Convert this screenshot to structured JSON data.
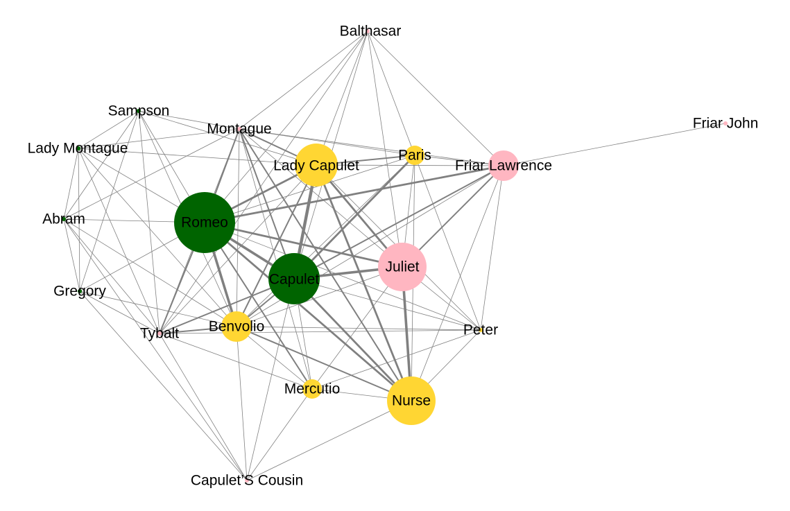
{
  "colors": {
    "background": "#ffffff",
    "edge": "#808080",
    "label": "#000000",
    "green_group": "#006400",
    "yellow_group": "#ffd633",
    "pink_group": "#ffb6c1"
  },
  "nodes": [
    {
      "id": "balthasar",
      "label": "Balthasar",
      "group": "pink",
      "size": 1
    },
    {
      "id": "sampson",
      "label": "Sampson",
      "group": "green",
      "size": 1
    },
    {
      "id": "montague",
      "label": "Montague",
      "group": "pink",
      "size": 1
    },
    {
      "id": "lady_montague",
      "label": "Lady Montague",
      "group": "green",
      "size": 1
    },
    {
      "id": "lady_capulet",
      "label": "Lady Capulet",
      "group": "yellow",
      "size": 5
    },
    {
      "id": "paris",
      "label": "Paris",
      "group": "yellow",
      "size": 2
    },
    {
      "id": "friar_lawrence",
      "label": "Friar Lawrence",
      "group": "pink",
      "size": 3
    },
    {
      "id": "friar_john",
      "label": "Friar John",
      "group": "pink",
      "size": 1
    },
    {
      "id": "abram",
      "label": "Abram",
      "group": "green",
      "size": 1
    },
    {
      "id": "romeo",
      "label": "Romeo",
      "group": "green",
      "size": 8
    },
    {
      "id": "juliet",
      "label": "Juliet",
      "group": "pink",
      "size": 6
    },
    {
      "id": "capulet",
      "label": "Capulet",
      "group": "green",
      "size": 7
    },
    {
      "id": "gregory",
      "label": "Gregory",
      "group": "green",
      "size": 1
    },
    {
      "id": "tybalt",
      "label": "Tybalt",
      "group": "pink",
      "size": 1
    },
    {
      "id": "benvolio",
      "label": "Benvolio",
      "group": "yellow",
      "size": 3
    },
    {
      "id": "peter",
      "label": "Peter",
      "group": "yellow",
      "size": 1
    },
    {
      "id": "mercutio",
      "label": "Mercutio",
      "group": "yellow",
      "size": 2
    },
    {
      "id": "nurse",
      "label": "Nurse",
      "group": "yellow",
      "size": 6
    },
    {
      "id": "capulets_cousin",
      "label": "Capulet’S Cousin",
      "group": "pink",
      "size": 1
    }
  ],
  "edges": [
    [
      "romeo",
      "capulet",
      4
    ],
    [
      "romeo",
      "lady_capulet",
      3
    ],
    [
      "romeo",
      "benvolio",
      4
    ],
    [
      "romeo",
      "juliet",
      3
    ],
    [
      "romeo",
      "nurse",
      3
    ],
    [
      "romeo",
      "friar_lawrence",
      3
    ],
    [
      "romeo",
      "montague",
      2
    ],
    [
      "romeo",
      "tybalt",
      2
    ],
    [
      "romeo",
      "mercutio",
      2
    ],
    [
      "romeo",
      "paris",
      1
    ],
    [
      "romeo",
      "balthasar",
      1
    ],
    [
      "romeo",
      "abram",
      1
    ],
    [
      "romeo",
      "gregory",
      1
    ],
    [
      "romeo",
      "sampson",
      1
    ],
    [
      "romeo",
      "lady_montague",
      1
    ],
    [
      "romeo",
      "peter",
      1
    ],
    [
      "capulet",
      "lady_capulet",
      5
    ],
    [
      "capulet",
      "juliet",
      4
    ],
    [
      "capulet",
      "nurse",
      3
    ],
    [
      "capulet",
      "paris",
      3
    ],
    [
      "capulet",
      "benvolio",
      2
    ],
    [
      "capulet",
      "tybalt",
      2
    ],
    [
      "capulet",
      "montague",
      2
    ],
    [
      "capulet",
      "mercutio",
      1
    ],
    [
      "capulet",
      "friar_lawrence",
      2
    ],
    [
      "capulet",
      "peter",
      1
    ],
    [
      "capulet",
      "capulets_cousin",
      1
    ],
    [
      "capulet",
      "balthasar",
      1
    ],
    [
      "lady_capulet",
      "juliet",
      3
    ],
    [
      "lady_capulet",
      "nurse",
      3
    ],
    [
      "lady_capulet",
      "paris",
      2
    ],
    [
      "lady_capulet",
      "montague",
      2
    ],
    [
      "lady_capulet",
      "benvolio",
      2
    ],
    [
      "lady_capulet",
      "friar_lawrence",
      1
    ],
    [
      "lady_capulet",
      "tybalt",
      1
    ],
    [
      "lady_capulet",
      "sampson",
      1
    ],
    [
      "lady_capulet",
      "balthasar",
      1
    ],
    [
      "lady_capulet",
      "lady_montague",
      1
    ],
    [
      "lady_capulet",
      "peter",
      1
    ],
    [
      "juliet",
      "nurse",
      4
    ],
    [
      "juliet",
      "friar_lawrence",
      2
    ],
    [
      "juliet",
      "paris",
      1
    ],
    [
      "juliet",
      "benvolio",
      1
    ],
    [
      "juliet",
      "peter",
      1
    ],
    [
      "juliet",
      "balthasar",
      1
    ],
    [
      "juliet",
      "mercutio",
      1
    ],
    [
      "juliet",
      "montague",
      1
    ],
    [
      "nurse",
      "friar_lawrence",
      1
    ],
    [
      "nurse",
      "benvolio",
      2
    ],
    [
      "nurse",
      "mercutio",
      1
    ],
    [
      "nurse",
      "peter",
      1
    ],
    [
      "nurse",
      "capulets_cousin",
      1
    ],
    [
      "nurse",
      "montague",
      2
    ],
    [
      "nurse",
      "paris",
      1
    ],
    [
      "benvolio",
      "tybalt",
      2
    ],
    [
      "benvolio",
      "mercutio",
      1
    ],
    [
      "benvolio",
      "montague",
      1
    ],
    [
      "benvolio",
      "capulets_cousin",
      1
    ],
    [
      "benvolio",
      "peter",
      1
    ],
    [
      "benvolio",
      "abram",
      1
    ],
    [
      "benvolio",
      "sampson",
      1
    ],
    [
      "benvolio",
      "gregory",
      1
    ],
    [
      "benvolio",
      "lady_montague",
      1
    ],
    [
      "benvolio",
      "friar_lawrence",
      1
    ],
    [
      "benvolio",
      "paris",
      1
    ],
    [
      "friar_lawrence",
      "paris",
      1
    ],
    [
      "friar_lawrence",
      "friar_john",
      1
    ],
    [
      "friar_lawrence",
      "balthasar",
      1
    ],
    [
      "friar_lawrence",
      "peter",
      1
    ],
    [
      "friar_lawrence",
      "montague",
      1
    ],
    [
      "paris",
      "balthasar",
      1
    ],
    [
      "paris",
      "peter",
      1
    ],
    [
      "paris",
      "montague",
      1
    ],
    [
      "montague",
      "sampson",
      1
    ],
    [
      "montague",
      "lady_montague",
      1
    ],
    [
      "montague",
      "balthasar",
      1
    ],
    [
      "montague",
      "tybalt",
      1
    ],
    [
      "montague",
      "mercutio",
      1
    ],
    [
      "montague",
      "abram",
      1
    ],
    [
      "tybalt",
      "mercutio",
      1
    ],
    [
      "tybalt",
      "capulets_cousin",
      1
    ],
    [
      "tybalt",
      "sampson",
      1
    ],
    [
      "tybalt",
      "gregory",
      1
    ],
    [
      "tybalt",
      "abram",
      1
    ],
    [
      "tybalt",
      "lady_montague",
      1
    ],
    [
      "tybalt",
      "peter",
      1
    ],
    [
      "tybalt",
      "balthasar",
      1
    ],
    [
      "mercutio",
      "peter",
      1
    ],
    [
      "mercutio",
      "capulets_cousin",
      1
    ],
    [
      "sampson",
      "gregory",
      1
    ],
    [
      "sampson",
      "abram",
      1
    ],
    [
      "sampson",
      "lady_montague",
      1
    ],
    [
      "lady_montague",
      "abram",
      1
    ],
    [
      "lady_montague",
      "gregory",
      1
    ],
    [
      "abram",
      "gregory",
      1
    ],
    [
      "gregory",
      "capulets_cousin",
      1
    ],
    [
      "abram",
      "capulets_cousin",
      1
    ]
  ]
}
